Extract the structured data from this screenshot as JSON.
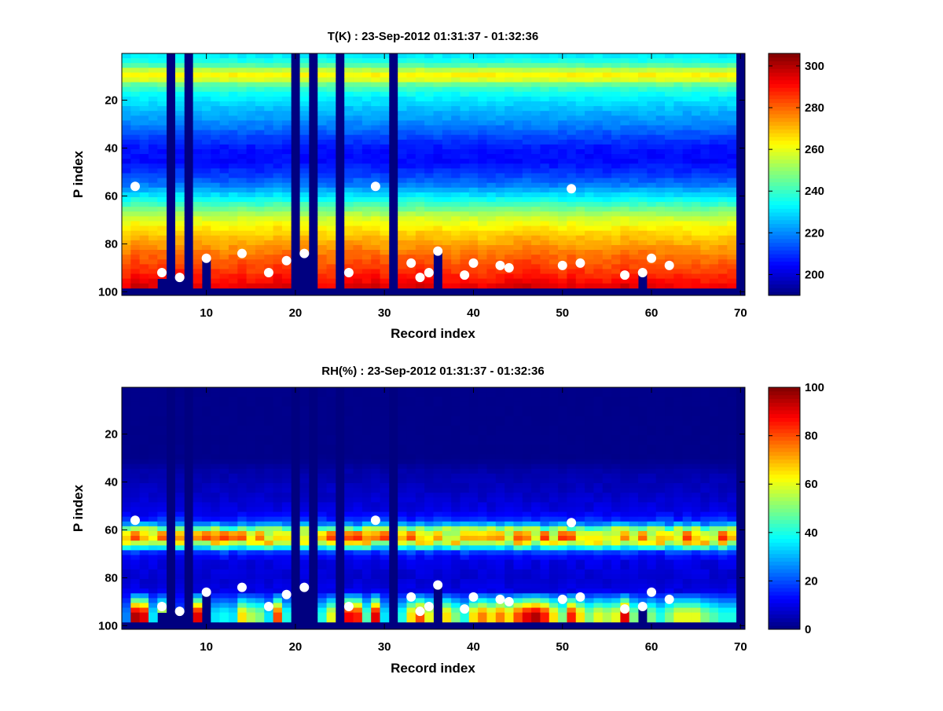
{
  "chart_data": [
    {
      "type": "heatmap",
      "title": "T(K) : 23-Sep-2012 01:31:37 - 01:32:36",
      "xlabel": "Record index",
      "ylabel": "P index",
      "xlim": [
        0.5,
        70.5
      ],
      "ylim": [
        0.5,
        101.5
      ],
      "y_reversed": true,
      "xticks": [
        10,
        20,
        30,
        40,
        50,
        60,
        70
      ],
      "yticks": [
        20,
        40,
        60,
        80,
        100
      ],
      "colormap": "jet",
      "clim": [
        190,
        306
      ],
      "colorbar_ticks": [
        200,
        220,
        240,
        260,
        280,
        300
      ],
      "valid_p_max": 98,
      "profile": [
        [
          1,
          232
        ],
        [
          3,
          236
        ],
        [
          5,
          243
        ],
        [
          7,
          255
        ],
        [
          9,
          263
        ],
        [
          11,
          258
        ],
        [
          13,
          245
        ],
        [
          16,
          236
        ],
        [
          20,
          230
        ],
        [
          25,
          224
        ],
        [
          30,
          219
        ],
        [
          35,
          212
        ],
        [
          40,
          206
        ],
        [
          45,
          205
        ],
        [
          50,
          210
        ],
        [
          55,
          218
        ],
        [
          60,
          232
        ],
        [
          64,
          243
        ],
        [
          68,
          255
        ],
        [
          72,
          262
        ],
        [
          76,
          268
        ],
        [
          80,
          273
        ],
        [
          85,
          279
        ],
        [
          90,
          284
        ],
        [
          95,
          290
        ],
        [
          98,
          294
        ]
      ],
      "column_offsets": [
        0,
        4,
        3,
        3,
        2,
        0,
        3,
        0,
        2,
        2,
        1,
        -1,
        1,
        2,
        0,
        0,
        1,
        4,
        3,
        0,
        2,
        0,
        0,
        -1,
        0,
        3,
        4,
        2,
        3,
        0,
        0,
        1,
        2,
        4,
        2,
        2,
        1,
        0,
        2,
        1,
        -1,
        0,
        1,
        2,
        3,
        4,
        4,
        3,
        1,
        0,
        2,
        1,
        0,
        0,
        -1,
        0,
        3,
        1,
        2,
        1,
        0,
        1,
        0,
        -1,
        -1,
        -2,
        -2,
        -1,
        -1,
        0
      ],
      "missing_columns": [
        6,
        8,
        20,
        22,
        25,
        31,
        70
      ],
      "masked_below": {
        "5": 95,
        "7": 95,
        "10": 87,
        "21": 85,
        "36": 84,
        "59": 93
      },
      "markers": [
        [
          2,
          56
        ],
        [
          5,
          92
        ],
        [
          7,
          94
        ],
        [
          10,
          86
        ],
        [
          14,
          84
        ],
        [
          17,
          92
        ],
        [
          19,
          87
        ],
        [
          21,
          84
        ],
        [
          26,
          92
        ],
        [
          29,
          56
        ],
        [
          33,
          88
        ],
        [
          34,
          94
        ],
        [
          35,
          92
        ],
        [
          36,
          83
        ],
        [
          39,
          93
        ],
        [
          40,
          88
        ],
        [
          43,
          89
        ],
        [
          44,
          90
        ],
        [
          50,
          89
        ],
        [
          51,
          57
        ],
        [
          52,
          88
        ],
        [
          57,
          93
        ],
        [
          59,
          92
        ],
        [
          60,
          86
        ],
        [
          62,
          89
        ]
      ]
    },
    {
      "type": "heatmap",
      "title": "RH(%) : 23-Sep-2012 01:31:37 - 01:32:36",
      "xlabel": "Record index",
      "ylabel": "P index",
      "xlim": [
        0.5,
        70.5
      ],
      "ylim": [
        0.5,
        101.5
      ],
      "y_reversed": true,
      "xticks": [
        10,
        20,
        30,
        40,
        50,
        60,
        70
      ],
      "yticks": [
        20,
        40,
        60,
        80,
        100
      ],
      "colormap": "jet",
      "clim": [
        0,
        100
      ],
      "colorbar_ticks": [
        0,
        20,
        40,
        60,
        80,
        100
      ],
      "valid_p_max": 98,
      "profile": [
        [
          1,
          1
        ],
        [
          30,
          1
        ],
        [
          35,
          4
        ],
        [
          45,
          7
        ],
        [
          52,
          10
        ],
        [
          56,
          18
        ],
        [
          58,
          35
        ],
        [
          60,
          62
        ],
        [
          63,
          70
        ],
        [
          65,
          60
        ],
        [
          67,
          38
        ],
        [
          69,
          18
        ],
        [
          72,
          10
        ],
        [
          80,
          8
        ],
        [
          85,
          10
        ]
      ],
      "surface_values": [
        25,
        95,
        90,
        35,
        60,
        null,
        20,
        null,
        90,
        90,
        35,
        38,
        35,
        65,
        55,
        50,
        35,
        80,
        40,
        null,
        null,
        null,
        40,
        60,
        null,
        88,
        85,
        45,
        90,
        35,
        null,
        40,
        65,
        80,
        60,
        null,
        65,
        50,
        40,
        65,
        75,
        65,
        75,
        65,
        80,
        90,
        95,
        85,
        65,
        50,
        85,
        65,
        50,
        60,
        55,
        60,
        90,
        50,
        40,
        50,
        40,
        50,
        60,
        60,
        60,
        50,
        45,
        40,
        40,
        null
      ],
      "missing_columns": [
        6,
        8,
        20,
        22,
        25,
        31,
        70
      ],
      "masked_below": {
        "5": 95,
        "7": 95,
        "10": 87,
        "21": 85,
        "36": 84,
        "59": 93
      },
      "markers": [
        [
          2,
          56
        ],
        [
          5,
          92
        ],
        [
          7,
          94
        ],
        [
          10,
          86
        ],
        [
          14,
          84
        ],
        [
          17,
          92
        ],
        [
          19,
          87
        ],
        [
          21,
          84
        ],
        [
          26,
          92
        ],
        [
          29,
          56
        ],
        [
          33,
          88
        ],
        [
          34,
          94
        ],
        [
          35,
          92
        ],
        [
          36,
          83
        ],
        [
          39,
          93
        ],
        [
          40,
          88
        ],
        [
          43,
          89
        ],
        [
          44,
          90
        ],
        [
          50,
          89
        ],
        [
          51,
          57
        ],
        [
          52,
          88
        ],
        [
          57,
          93
        ],
        [
          59,
          92
        ],
        [
          60,
          86
        ],
        [
          62,
          89
        ]
      ]
    }
  ],
  "colors": {
    "masked": "#000080",
    "marker": "#ffffff"
  }
}
